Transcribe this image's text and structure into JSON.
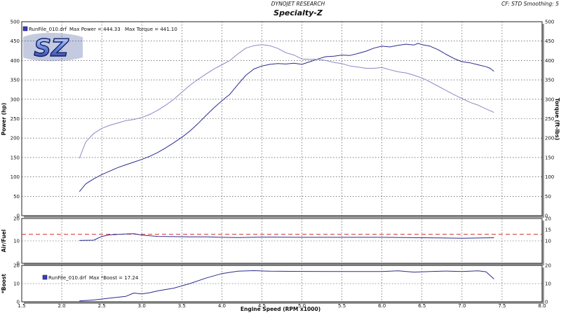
{
  "header": {
    "company": "DYNOJET RESEARCH",
    "title": "Specialty-Z",
    "settings": "CF: STD  Smoothing: 5"
  },
  "logo": {
    "text": "SZ"
  },
  "chart_data": [
    {
      "type": "line",
      "name": "power-torque",
      "ylabel_left": "Power (hp)",
      "ylabel_right": "Torque (ft-lbs)",
      "xlim": [
        1.5,
        8.0
      ],
      "ylim": [
        0,
        500
      ],
      "x_ticks": [
        1.5,
        2.0,
        2.5,
        3.0,
        3.5,
        4.0,
        4.5,
        5.0,
        5.5,
        6.0,
        6.5,
        7.0,
        7.5,
        8.0
      ],
      "y_ticks": [
        0,
        50,
        100,
        150,
        200,
        250,
        300,
        350,
        400,
        450,
        500
      ],
      "legend": {
        "run": "RunFile_010.drf",
        "max_power_label": "Max Power = 444.33",
        "max_torque_label": "Max Torque = 441.10"
      },
      "series": [
        {
          "name": "Power",
          "color": "#2b2b8f",
          "points": [
            [
              2.22,
              62
            ],
            [
              2.3,
              82
            ],
            [
              2.4,
              95
            ],
            [
              2.5,
              106
            ],
            [
              2.6,
              115
            ],
            [
              2.7,
              124
            ],
            [
              2.8,
              131
            ],
            [
              2.9,
              138
            ],
            [
              3.0,
              145
            ],
            [
              3.1,
              153
            ],
            [
              3.2,
              163
            ],
            [
              3.3,
              175
            ],
            [
              3.4,
              188
            ],
            [
              3.5,
              202
            ],
            [
              3.6,
              218
            ],
            [
              3.7,
              237
            ],
            [
              3.8,
              258
            ],
            [
              3.9,
              278
            ],
            [
              4.0,
              296
            ],
            [
              4.1,
              313
            ],
            [
              4.2,
              338
            ],
            [
              4.3,
              362
            ],
            [
              4.4,
              378
            ],
            [
              4.5,
              386
            ],
            [
              4.6,
              390
            ],
            [
              4.7,
              392
            ],
            [
              4.8,
              391
            ],
            [
              4.9,
              393
            ],
            [
              5.0,
              390
            ],
            [
              5.1,
              397
            ],
            [
              5.2,
              404
            ],
            [
              5.3,
              410
            ],
            [
              5.4,
              411
            ],
            [
              5.5,
              414
            ],
            [
              5.6,
              413
            ],
            [
              5.7,
              418
            ],
            [
              5.8,
              424
            ],
            [
              5.9,
              432
            ],
            [
              6.0,
              437
            ],
            [
              6.1,
              435
            ],
            [
              6.2,
              439
            ],
            [
              6.3,
              442
            ],
            [
              6.4,
              440
            ],
            [
              6.45,
              444
            ],
            [
              6.5,
              441
            ],
            [
              6.6,
              437
            ],
            [
              6.7,
              428
            ],
            [
              6.8,
              416
            ],
            [
              6.9,
              405
            ],
            [
              7.0,
              397
            ],
            [
              7.1,
              394
            ],
            [
              7.2,
              389
            ],
            [
              7.3,
              384
            ],
            [
              7.35,
              380
            ],
            [
              7.4,
              372
            ]
          ]
        },
        {
          "name": "Torque",
          "color": "#8a88c4",
          "points": [
            [
              2.22,
              148
            ],
            [
              2.3,
              190
            ],
            [
              2.4,
              212
            ],
            [
              2.5,
              225
            ],
            [
              2.6,
              233
            ],
            [
              2.7,
              239
            ],
            [
              2.8,
              245
            ],
            [
              2.9,
              248
            ],
            [
              3.0,
              253
            ],
            [
              3.1,
              261
            ],
            [
              3.2,
              272
            ],
            [
              3.3,
              285
            ],
            [
              3.4,
              300
            ],
            [
              3.5,
              318
            ],
            [
              3.6,
              336
            ],
            [
              3.7,
              351
            ],
            [
              3.8,
              365
            ],
            [
              3.9,
              378
            ],
            [
              4.0,
              389
            ],
            [
              4.1,
              400
            ],
            [
              4.2,
              417
            ],
            [
              4.3,
              432
            ],
            [
              4.4,
              438
            ],
            [
              4.5,
              441
            ],
            [
              4.6,
              438
            ],
            [
              4.7,
              431
            ],
            [
              4.8,
              420
            ],
            [
              4.9,
              414
            ],
            [
              5.0,
              404
            ],
            [
              5.1,
              403
            ],
            [
              5.2,
              403
            ],
            [
              5.3,
              400
            ],
            [
              5.4,
              395
            ],
            [
              5.5,
              392
            ],
            [
              5.6,
              386
            ],
            [
              5.7,
              383
            ],
            [
              5.8,
              380
            ],
            [
              5.9,
              380
            ],
            [
              6.0,
              382
            ],
            [
              6.1,
              376
            ],
            [
              6.2,
              371
            ],
            [
              6.3,
              368
            ],
            [
              6.4,
              362
            ],
            [
              6.5,
              355
            ],
            [
              6.6,
              345
            ],
            [
              6.7,
              334
            ],
            [
              6.8,
              323
            ],
            [
              6.9,
              312
            ],
            [
              7.0,
              302
            ],
            [
              7.1,
              292
            ],
            [
              7.2,
              285
            ],
            [
              7.3,
              275
            ],
            [
              7.4,
              266
            ]
          ]
        }
      ]
    },
    {
      "type": "line",
      "name": "air-fuel",
      "ylabel_left": "Air/Fuel",
      "xlim": [
        1.5,
        8.0
      ],
      "ylim": [
        0,
        20
      ],
      "y_ticks": [
        0,
        10,
        20
      ],
      "y_ticks_right": [
        10,
        15,
        20
      ],
      "reference_line": {
        "y": 13.0,
        "color": "#cc2222",
        "style": "dashed"
      },
      "series": [
        {
          "name": "Air/Fuel",
          "color": "#2b2b8f",
          "points": [
            [
              2.22,
              10.2
            ],
            [
              2.4,
              10.3
            ],
            [
              2.5,
              12.0
            ],
            [
              2.6,
              12.7
            ],
            [
              2.7,
              12.9
            ],
            [
              2.8,
              13.1
            ],
            [
              2.9,
              13.2
            ],
            [
              3.0,
              12.6
            ],
            [
              3.2,
              12.0
            ],
            [
              3.4,
              11.9
            ],
            [
              3.6,
              11.8
            ],
            [
              3.8,
              11.8
            ],
            [
              4.0,
              11.6
            ],
            [
              4.2,
              11.5
            ],
            [
              4.5,
              11.7
            ],
            [
              5.0,
              11.6
            ],
            [
              5.5,
              11.6
            ],
            [
              6.0,
              11.6
            ],
            [
              6.5,
              11.4
            ],
            [
              7.0,
              11.2
            ],
            [
              7.4,
              11.4
            ]
          ]
        }
      ]
    },
    {
      "type": "line",
      "name": "boost",
      "ylabel_left": "*Boost",
      "xlabel": "Engine Speed (RPM x1000)",
      "xlim": [
        1.5,
        8.0
      ],
      "ylim": [
        0,
        20
      ],
      "y_ticks": [
        0,
        10,
        20
      ],
      "y_ticks_right": [
        0,
        10,
        20
      ],
      "legend": {
        "run": "RunFile_010.drf",
        "max_boost_label": "Max *Boost = 17.24"
      },
      "series": [
        {
          "name": "*Boost",
          "color": "#2b2b8f",
          "points": [
            [
              2.22,
              0.5
            ],
            [
              2.4,
              1.0
            ],
            [
              2.6,
              2.0
            ],
            [
              2.8,
              3.0
            ],
            [
              2.9,
              4.8
            ],
            [
              3.0,
              4.3
            ],
            [
              3.1,
              5.0
            ],
            [
              3.2,
              6.0
            ],
            [
              3.4,
              7.5
            ],
            [
              3.6,
              10.0
            ],
            [
              3.8,
              13.0
            ],
            [
              4.0,
              15.5
            ],
            [
              4.2,
              16.8
            ],
            [
              4.4,
              17.1
            ],
            [
              4.6,
              16.8
            ],
            [
              5.0,
              16.7
            ],
            [
              5.5,
              16.6
            ],
            [
              6.0,
              16.6
            ],
            [
              6.2,
              17.0
            ],
            [
              6.4,
              16.3
            ],
            [
              6.6,
              16.6
            ],
            [
              6.8,
              16.9
            ],
            [
              7.0,
              16.6
            ],
            [
              7.2,
              17.0
            ],
            [
              7.3,
              16.5
            ],
            [
              7.4,
              12.5
            ]
          ]
        }
      ]
    }
  ]
}
